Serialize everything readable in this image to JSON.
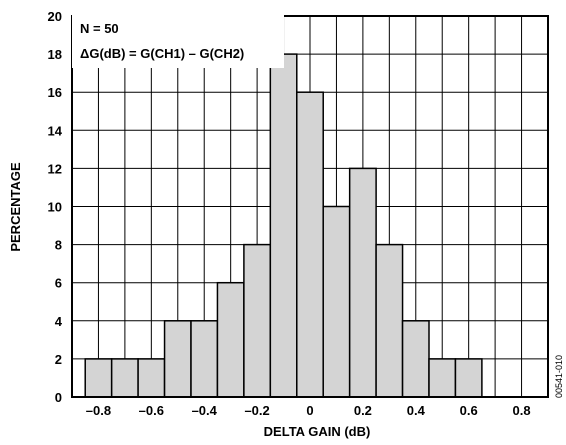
{
  "chart_data": {
    "type": "bar",
    "title": "",
    "xlabel": "DELTA GAIN (dB)",
    "ylabel": "PERCENTAGE",
    "xlim": [
      -0.9,
      0.9
    ],
    "ylim": [
      0,
      20
    ],
    "grid": true,
    "xticks": [
      "–0.8",
      "–0.6",
      "–0.4",
      "–0.2",
      "0",
      "0.2",
      "0.4",
      "0.6",
      "0.8"
    ],
    "yticks": [
      "0",
      "2",
      "4",
      "6",
      "8",
      "10",
      "12",
      "14",
      "16",
      "18",
      "20"
    ],
    "bin_width": 0.1,
    "bins": [
      {
        "x": -0.8,
        "value": 2
      },
      {
        "x": -0.7,
        "value": 2
      },
      {
        "x": -0.6,
        "value": 2
      },
      {
        "x": -0.5,
        "value": 4
      },
      {
        "x": -0.4,
        "value": 4
      },
      {
        "x": -0.3,
        "value": 6
      },
      {
        "x": -0.2,
        "value": 8
      },
      {
        "x": -0.1,
        "value": 18
      },
      {
        "x": 0.0,
        "value": 16
      },
      {
        "x": 0.1,
        "value": 10
      },
      {
        "x": 0.2,
        "value": 12
      },
      {
        "x": 0.3,
        "value": 8
      },
      {
        "x": 0.4,
        "value": 4
      },
      {
        "x": 0.5,
        "value": 2
      },
      {
        "x": 0.6,
        "value": 2
      }
    ],
    "bar_color": "#d4d4d4",
    "annotations": [
      "N = 50",
      "ΔG(dB) = G(CH1) – G(CH2)"
    ],
    "figure_id": "00541-010"
  }
}
